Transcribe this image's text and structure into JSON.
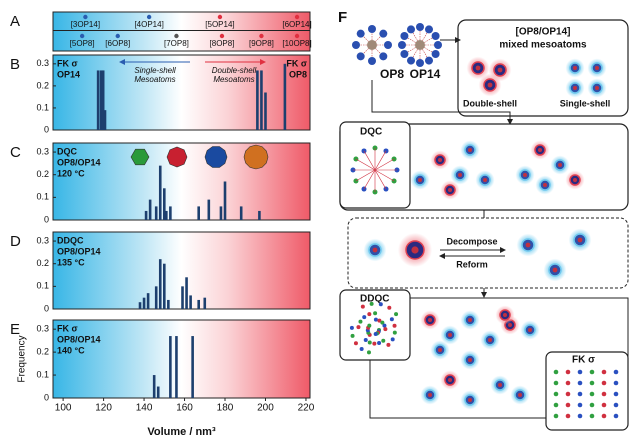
{
  "chart_data": [
    {
      "type": "dot",
      "label": "A",
      "xlim": [
        95,
        222
      ],
      "series": [
        {
          "x": [
            111,
            142.5,
            177.5,
            215.6
          ],
          "labels": [
            "[3OP14]",
            "[4OP14]",
            "[5OP14]",
            "[6OP14]"
          ],
          "colors": [
            "#2a5db0",
            "#2a5db0",
            "#e03040",
            "#e03040"
          ]
        },
        {
          "x": [
            109.4,
            127,
            156,
            178.5,
            198,
            215.6
          ],
          "labels": [
            "[5OP8]",
            "[6OP8]",
            "[7OP8]",
            "[8OP8]",
            "[9OP8]",
            "[10OP8]"
          ],
          "colors": [
            "#2a5db0",
            "#2a5db0",
            "#555555",
            "#e03040",
            "#e03040",
            "#e03040"
          ]
        }
      ]
    },
    {
      "type": "bar",
      "label": "B",
      "text_left": [
        "FK σ",
        "OP14"
      ],
      "text_right": [
        "FK σ",
        "OP8"
      ],
      "arrow_left": [
        "Single-shell",
        "Mesoatoms"
      ],
      "arrow_right": [
        "Double-shell",
        "Mesoatoms"
      ],
      "x": [
        117.3,
        118.8,
        119.8,
        120.7,
        196,
        198,
        200,
        209.6
      ],
      "values": [
        0.27,
        0.27,
        0.27,
        0.09,
        0.27,
        0.27,
        0.17,
        0.3
      ],
      "color": "#1d3f6e",
      "xlim": [
        95,
        222
      ],
      "ylim": [
        0,
        0.34
      ],
      "yticks": [
        0,
        0.1,
        0.2,
        0.3
      ]
    },
    {
      "type": "bar",
      "label": "C",
      "text_left": [
        "DQC",
        "OP8/OP14",
        "120 °C"
      ],
      "x": [
        141,
        143,
        146,
        148,
        150,
        151,
        153,
        167,
        172,
        178,
        180,
        188,
        197
      ],
      "values": [
        0.04,
        0.09,
        0.06,
        0.24,
        0.14,
        0.04,
        0.06,
        0.06,
        0.09,
        0.06,
        0.17,
        0.06,
        0.04
      ],
      "color": "#1d3f6e",
      "xlim": [
        95,
        222
      ],
      "ylim": [
        0,
        0.34
      ],
      "yticks": [
        0,
        0.1,
        0.2,
        0.3
      ]
    },
    {
      "type": "bar",
      "label": "D",
      "text_left": [
        "DDQC",
        "OP8/OP14",
        "135 °C"
      ],
      "x": [
        138,
        140,
        142,
        146,
        148,
        150,
        152,
        159,
        161,
        163,
        167,
        170
      ],
      "values": [
        0.03,
        0.05,
        0.07,
        0.1,
        0.22,
        0.2,
        0.04,
        0.1,
        0.14,
        0.06,
        0.04,
        0.05
      ],
      "color": "#1d3f6e",
      "xlim": [
        95,
        222
      ],
      "ylim": [
        0,
        0.34
      ],
      "yticks": [
        0,
        0.1,
        0.2,
        0.3
      ]
    },
    {
      "type": "bar",
      "label": "E",
      "text_left": [
        "FK σ",
        "OP8/OP14",
        "140 °C"
      ],
      "x": [
        145,
        147,
        153,
        156,
        164
      ],
      "values": [
        0.1,
        0.05,
        0.27,
        0.27,
        0.27
      ],
      "color": "#1d3f6e",
      "xlim": [
        95,
        222
      ],
      "ylim": [
        0,
        0.34
      ],
      "yticks": [
        0,
        0.1,
        0.2,
        0.3
      ],
      "xticks": [
        100,
        120,
        140,
        160,
        180,
        200,
        220
      ],
      "xlabel": "Volume / nm³",
      "ylabel": "Frequency"
    }
  ],
  "diagram": {
    "label": "F",
    "op8": "OP8",
    "op14": "OP14",
    "mixed": [
      "[OP8/OP14]",
      "mixed mesoatoms"
    ],
    "double_shell": "Double-shell",
    "single_shell": "Single-shell",
    "dqc": "DQC",
    "decompose": "Decompose",
    "reform": "Reform",
    "ddqc": "DDQC",
    "fk": "FK σ"
  }
}
